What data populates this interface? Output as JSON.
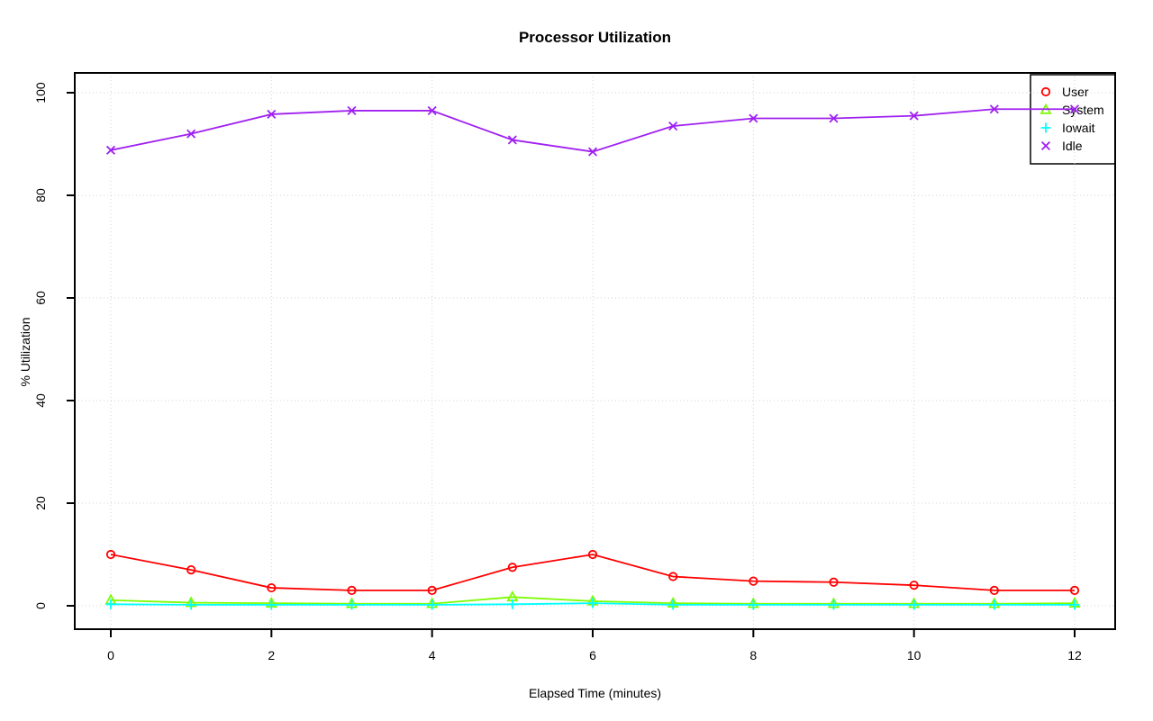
{
  "chart_data": {
    "type": "line",
    "title": "Processor Utilization",
    "xlabel": "Elapsed Time (minutes)",
    "ylabel": "% Utilization",
    "x": [
      0,
      1,
      2,
      3,
      4,
      5,
      6,
      7,
      8,
      9,
      10,
      11,
      12
    ],
    "xlim": [
      0,
      12
    ],
    "ylim": [
      0,
      100
    ],
    "xticks": [
      0,
      2,
      4,
      6,
      8,
      10,
      12
    ],
    "yticks": [
      0,
      20,
      40,
      60,
      80,
      100
    ],
    "grid": "dotted",
    "grid_color": "#D3D3D3",
    "axis_color": "#000000",
    "background": "#FFFFFF",
    "legend_position": "top-right",
    "series": [
      {
        "name": "User",
        "color": "#FF0000",
        "marker": "circle",
        "values": [
          10,
          7,
          3.5,
          3,
          3,
          7.5,
          10,
          5.7,
          4.8,
          4.6,
          4,
          3,
          3
        ]
      },
      {
        "name": "System",
        "color": "#7CFC00",
        "marker": "triangle",
        "values": [
          1.1,
          0.6,
          0.5,
          0.4,
          0.4,
          1.7,
          0.9,
          0.5,
          0.4,
          0.4,
          0.4,
          0.4,
          0.5
        ]
      },
      {
        "name": "Iowait",
        "color": "#00FFFF",
        "marker": "plus",
        "values": [
          0.3,
          0.2,
          0.2,
          0.2,
          0.2,
          0.3,
          0.5,
          0.2,
          0.2,
          0.2,
          0.2,
          0.2,
          0.2
        ]
      },
      {
        "name": "Idle",
        "color": "#A020F0",
        "marker": "x",
        "values": [
          88.8,
          92,
          95.8,
          96.5,
          96.5,
          90.8,
          88.5,
          93.5,
          95,
          95,
          95.5,
          96.8,
          96.8
        ]
      }
    ]
  }
}
